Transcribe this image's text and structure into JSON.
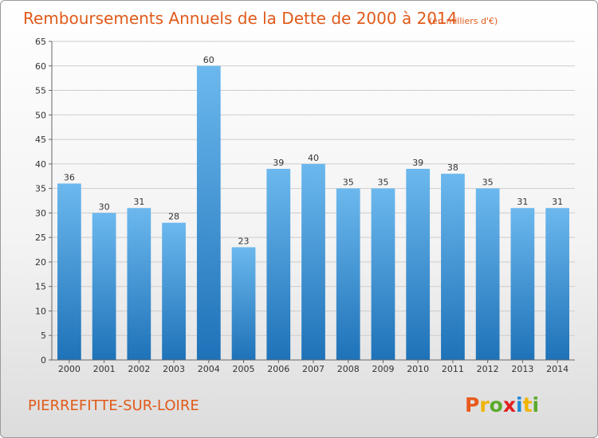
{
  "title": "Remboursements Annuels de la Dette de 2000 à 2014",
  "unit": "(en milliers d'€)",
  "commune": "PIERREFITTE-SUR-LOIRE",
  "logo": {
    "letters": [
      "P",
      "r",
      "o",
      "x",
      "i",
      "t",
      "i"
    ],
    "colors": [
      "#e85a1c",
      "#f0b400",
      "#5aaa2a",
      "#e02020",
      "#1e88d8",
      "#f0b400",
      "#5aaa2a"
    ]
  },
  "colors": {
    "title": "#e05a1a",
    "bar_light": "#6cb8ee",
    "bar_dark": "#1e72b8",
    "grid": "#cccccc"
  },
  "chart_data": {
    "type": "bar",
    "categories": [
      "2000",
      "2001",
      "2002",
      "2003",
      "2004",
      "2005",
      "2006",
      "2007",
      "2008",
      "2009",
      "2010",
      "2011",
      "2012",
      "2013",
      "2014"
    ],
    "values": [
      36,
      30,
      31,
      28,
      60,
      23,
      39,
      40,
      35,
      35,
      39,
      38,
      35,
      31,
      31
    ],
    "data_labels": [
      "36",
      "30",
      "31",
      "28",
      "60",
      "23",
      "39",
      "40",
      "35",
      "35",
      "39",
      "38",
      "35",
      "31",
      "31"
    ],
    "yticks": [
      "0",
      "5",
      "10",
      "15",
      "20",
      "25",
      "30",
      "35",
      "40",
      "45",
      "50",
      "55",
      "60",
      "65"
    ],
    "ylim": [
      0,
      65
    ],
    "grid": true,
    "title": "Remboursements Annuels de la Dette de 2000 à 2014",
    "xlabel": "",
    "ylabel": ""
  }
}
